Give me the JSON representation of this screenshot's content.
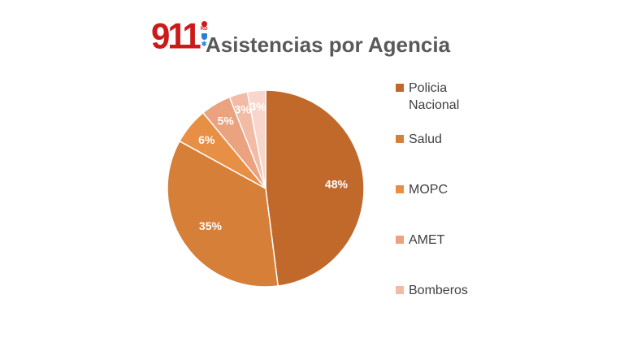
{
  "title": "Asistencias por Agencia",
  "logo": {
    "text": "911",
    "small_text": "RD"
  },
  "chart_data": {
    "type": "pie",
    "title": "Asistencias por Agencia",
    "slices": [
      {
        "label": "Policia Nacional",
        "value": 48,
        "display": "48%",
        "color": "#c0692b"
      },
      {
        "label": "Salud",
        "value": 35,
        "display": "35%",
        "color": "#d57f39"
      },
      {
        "label": "MOPC",
        "value": 6,
        "display": "6%",
        "color": "#e88f46"
      },
      {
        "label": "AMET",
        "value": 5,
        "display": "5%",
        "color": "#eaa27f"
      },
      {
        "label": "Bomberos",
        "value": 3,
        "display": "3%",
        "color": "#f2bba6"
      },
      {
        "label": "",
        "value": 3,
        "display": "3%",
        "color": "#f8d6cc"
      }
    ],
    "legend_position": "right"
  },
  "legend": [
    {
      "label": "Policia Nacional",
      "color": "#c0692b"
    },
    {
      "label": "Salud",
      "color": "#d57f39"
    },
    {
      "label": "MOPC",
      "color": "#e88f46"
    },
    {
      "label": "AMET",
      "color": "#eaa27f"
    },
    {
      "label": "Bomberos",
      "color": "#f2bba6"
    }
  ]
}
